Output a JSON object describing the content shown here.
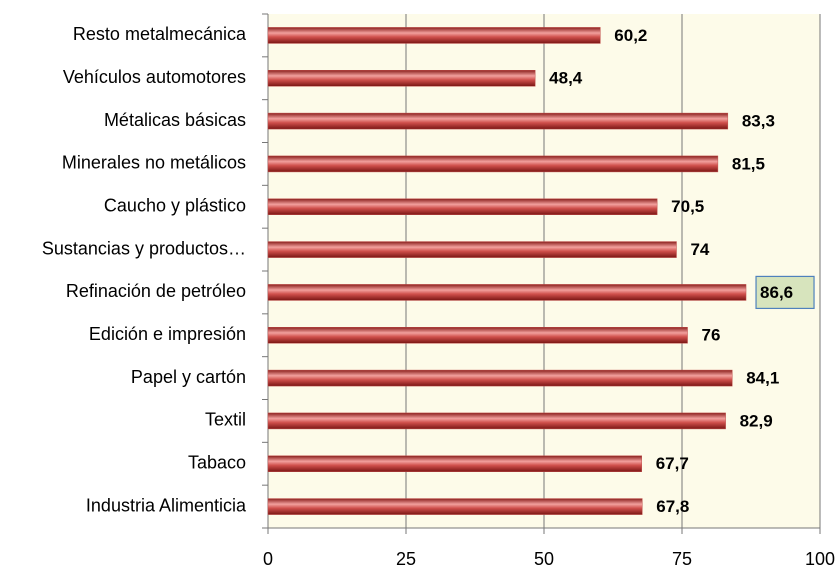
{
  "chart_data": {
    "type": "barh",
    "categories": [
      "Resto metalmecánica",
      "Vehículos automotores",
      "Métalicas básicas",
      "Minerales no metálicos",
      "Caucho y plástico",
      "Sustancias y productos…",
      "Refinación de petróleo",
      "Edición e impresión",
      "Papel y cartón",
      "Textil",
      "Tabaco",
      "Industria Alimenticia"
    ],
    "values": [
      60.2,
      48.4,
      83.3,
      81.5,
      70.5,
      74,
      86.6,
      76,
      84.1,
      82.9,
      67.7,
      67.8
    ],
    "value_labels": [
      "60,2",
      "48,4",
      "83,3",
      "81,5",
      "70,5",
      "74",
      "86,6",
      "76",
      "84,1",
      "82,9",
      "67,7",
      "67,8"
    ],
    "color": "#c0504d",
    "highlight_category": "Refinación de petróleo",
    "xlim": [
      0,
      100
    ],
    "xticks": [
      0,
      25,
      50,
      75,
      100
    ],
    "grid": true
  }
}
